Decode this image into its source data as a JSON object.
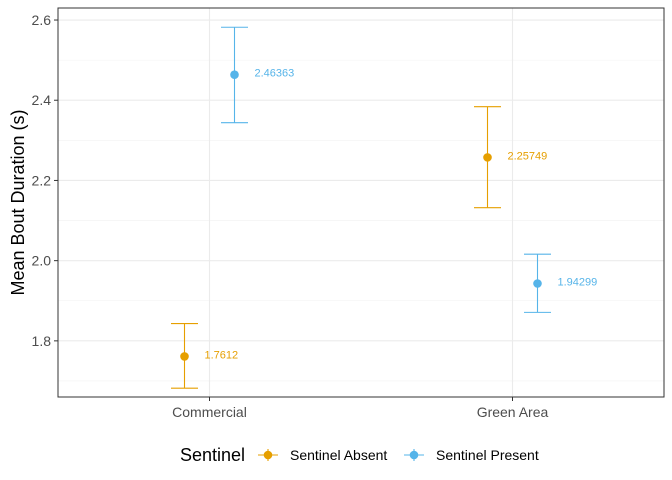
{
  "chart_data": {
    "type": "scatter",
    "title": "",
    "xlabel": "",
    "ylabel": "Mean Bout Duration (s)",
    "categories": [
      "Commercial",
      "Green Area"
    ],
    "ylim": [
      1.66,
      2.63
    ],
    "y_ticks": [
      1.8,
      2.0,
      2.2,
      2.4,
      2.6
    ],
    "y_tick_labels": [
      "1.8",
      "2.0",
      "2.2",
      "2.4",
      "2.6"
    ],
    "grid": true,
    "legend": {
      "title": "Sentinel",
      "position": "bottom"
    },
    "series": [
      {
        "name": "Sentinel Absent",
        "color": "#E69F00",
        "values": [
          1.7612,
          2.25749
        ],
        "lower": [
          1.682,
          2.132
        ],
        "upper": [
          1.843,
          2.384
        ],
        "labels": [
          "1.7612",
          "2.25749"
        ]
      },
      {
        "name": "Sentinel Present",
        "color": "#56B4E9",
        "values": [
          2.46363,
          1.94299
        ],
        "lower": [
          2.344,
          1.871
        ],
        "upper": [
          2.582,
          2.016
        ],
        "labels": [
          "2.46363",
          "1.94299"
        ]
      }
    ]
  }
}
